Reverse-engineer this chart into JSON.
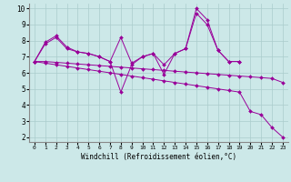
{
  "title": "",
  "xlabel": "Windchill (Refroidissement éolien,°C)",
  "ylabel": "",
  "bg_color": "#cce8e8",
  "line_color": "#990099",
  "xlim": [
    -0.5,
    23.5
  ],
  "ylim": [
    1.7,
    10.3
  ],
  "xticks": [
    0,
    1,
    2,
    3,
    4,
    5,
    6,
    7,
    8,
    9,
    10,
    11,
    12,
    13,
    14,
    15,
    16,
    17,
    18,
    19,
    20,
    21,
    22,
    23
  ],
  "yticks": [
    2,
    3,
    4,
    5,
    6,
    7,
    8,
    9,
    10
  ],
  "lines": [
    {
      "x": [
        0,
        1,
        2,
        3,
        4,
        5,
        6,
        7,
        8,
        9,
        10,
        11,
        12,
        13,
        14,
        15,
        16,
        17,
        18,
        19
      ],
      "y": [
        6.7,
        7.9,
        8.3,
        7.6,
        7.3,
        7.2,
        7.0,
        6.7,
        4.8,
        6.5,
        7.0,
        7.2,
        5.9,
        7.2,
        7.5,
        9.7,
        9.0,
        7.4,
        6.7,
        6.7
      ]
    },
    {
      "x": [
        0,
        1,
        2,
        3,
        4,
        5,
        6,
        7,
        8,
        9,
        10,
        11,
        12,
        13,
        14,
        15,
        16,
        17,
        18,
        19
      ],
      "y": [
        6.7,
        7.8,
        8.2,
        7.5,
        7.3,
        7.2,
        7.0,
        6.7,
        8.2,
        6.6,
        7.0,
        7.2,
        6.5,
        7.2,
        7.5,
        10.0,
        9.3,
        7.4,
        6.7,
        6.7
      ]
    },
    {
      "x": [
        0,
        1,
        2,
        3,
        4,
        5,
        6,
        7,
        8,
        9,
        10,
        11,
        12,
        13,
        14,
        15,
        16,
        17,
        18,
        19,
        20,
        21,
        22,
        23
      ],
      "y": [
        6.7,
        6.6,
        6.5,
        6.4,
        6.3,
        6.2,
        6.1,
        6.0,
        5.9,
        5.8,
        5.7,
        5.6,
        5.5,
        5.4,
        5.3,
        5.2,
        5.1,
        5.0,
        4.9,
        4.8,
        3.6,
        3.4,
        2.6,
        2.0
      ]
    },
    {
      "x": [
        0,
        1,
        2,
        3,
        4,
        5,
        6,
        7,
        8,
        9,
        10,
        11,
        12,
        13,
        14,
        15,
        16,
        17,
        18,
        19,
        20,
        21,
        22,
        23
      ],
      "y": [
        6.7,
        6.7,
        6.65,
        6.6,
        6.55,
        6.5,
        6.45,
        6.4,
        6.35,
        6.3,
        6.25,
        6.2,
        6.15,
        6.1,
        6.05,
        6.0,
        5.95,
        5.9,
        5.85,
        5.8,
        5.75,
        5.7,
        5.65,
        5.4
      ]
    }
  ]
}
